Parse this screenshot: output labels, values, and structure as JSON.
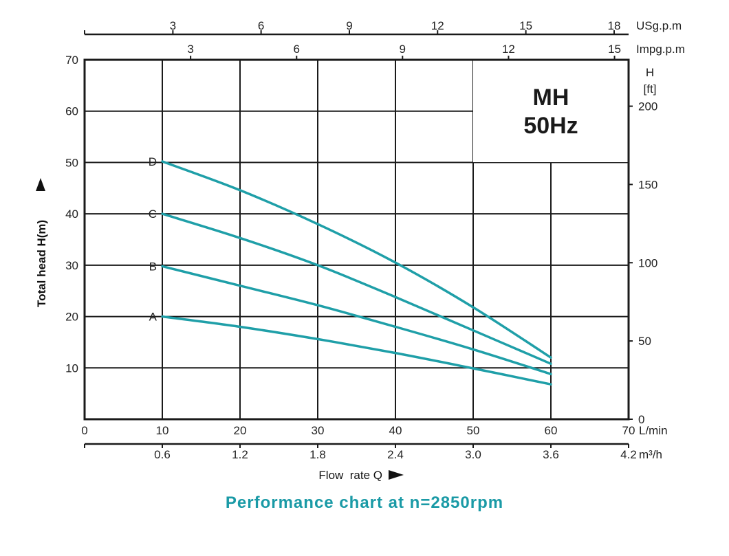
{
  "caption": "Performance chart at n=2850rpm",
  "colors": {
    "curve": "#1f9fa8",
    "grid": "#1a1a1a",
    "caption": "#1a9aa6"
  },
  "chart_data": {
    "type": "line",
    "title_line1": "MH",
    "title_line2": "50Hz",
    "xlabel": "Flow  rate Q",
    "ylabel": "Total head H(m)",
    "xlim": [
      0,
      70
    ],
    "ylim": [
      0,
      70
    ],
    "x_unit": "L/min",
    "x_ticks": [
      0,
      10,
      20,
      30,
      40,
      50,
      60,
      70
    ],
    "y_ticks": [
      10,
      20,
      30,
      40,
      50,
      60,
      70
    ],
    "grid": true,
    "secondary_x_bottom": {
      "unit": "m³/h",
      "ticks": [
        {
          "at": 10,
          "label": "0.6"
        },
        {
          "at": 20,
          "label": "1.2"
        },
        {
          "at": 30,
          "label": "1.8"
        },
        {
          "at": 40,
          "label": "2.4"
        },
        {
          "at": 50,
          "label": "3.0"
        },
        {
          "at": 60,
          "label": "3.6"
        },
        {
          "at": 70,
          "label": "4.2"
        }
      ]
    },
    "secondary_x_top_us": {
      "unit": "USg.p.m",
      "ticks": [
        {
          "at": 11.36,
          "label": "3"
        },
        {
          "at": 22.71,
          "label": "6"
        },
        {
          "at": 34.07,
          "label": "9"
        },
        {
          "at": 45.42,
          "label": "12"
        },
        {
          "at": 56.78,
          "label": "15"
        },
        {
          "at": 68.14,
          "label": "18"
        }
      ]
    },
    "secondary_x_top_imp": {
      "unit": "Impg.p.m",
      "ticks": [
        {
          "at": 13.64,
          "label": "3"
        },
        {
          "at": 27.28,
          "label": "6"
        },
        {
          "at": 40.91,
          "label": "9"
        },
        {
          "at": 54.55,
          "label": "12"
        },
        {
          "at": 68.19,
          "label": "15"
        }
      ]
    },
    "secondary_y_right": {
      "unit_line1": "H",
      "unit_line2": "[ft]",
      "ticks": [
        {
          "at": 0,
          "label": "0"
        },
        {
          "at": 15.24,
          "label": "50"
        },
        {
          "at": 30.48,
          "label": "100"
        },
        {
          "at": 45.72,
          "label": "150"
        },
        {
          "at": 60.96,
          "label": "200"
        }
      ]
    },
    "series": [
      {
        "name": "A",
        "x": [
          10,
          20,
          30,
          40,
          50,
          60
        ],
        "y": [
          20,
          18,
          15.6,
          12.9,
          9.9,
          6.8
        ]
      },
      {
        "name": "B",
        "x": [
          10,
          20,
          30,
          40,
          50,
          60
        ],
        "y": [
          29.8,
          26,
          22.2,
          18,
          13.6,
          8.8
        ]
      },
      {
        "name": "C",
        "x": [
          10,
          20,
          30,
          40,
          50,
          60
        ],
        "y": [
          40,
          35.3,
          30,
          23.8,
          17.3,
          10.8
        ]
      },
      {
        "name": "D",
        "x": [
          10,
          20,
          30,
          40,
          50,
          60
        ],
        "y": [
          50.2,
          44.6,
          38,
          30.5,
          21.8,
          12
        ]
      }
    ]
  }
}
